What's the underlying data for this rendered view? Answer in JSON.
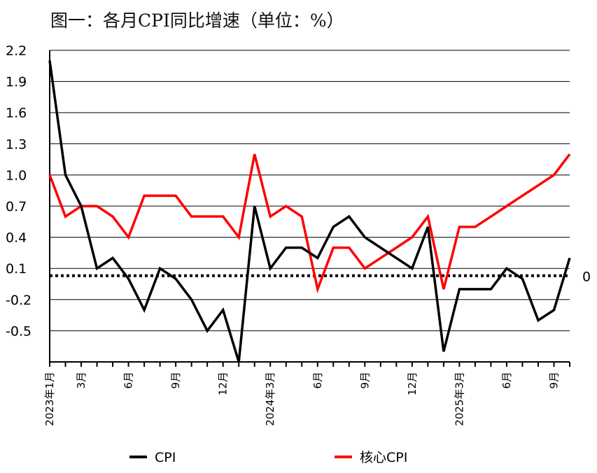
{
  "chart_data": {
    "type": "line",
    "title": "图一：各月CPI同比增速（单位：%）",
    "xlabel": "",
    "ylabel": "",
    "ylim": [
      -0.8,
      2.2
    ],
    "yticks": [
      "2.2",
      "1.9",
      "1.6",
      "1.3",
      "1.0",
      "0.7",
      "0.4",
      "0.1",
      "-0.2",
      "-0.5"
    ],
    "x": [
      "2023年1月",
      "2",
      "3月",
      "4",
      "5",
      "6月",
      "7",
      "8",
      "9月",
      "10",
      "11",
      "12月",
      "2024年1月",
      "2024年3月",
      "3",
      "4",
      "5",
      "6月",
      "7",
      "8",
      "9月",
      "10",
      "11",
      "12月",
      "2025年1月",
      "2",
      "2025年3月",
      "4",
      "5",
      "6月",
      "7",
      "8",
      "9月",
      "10"
    ],
    "x_labels": [
      {
        "index": 0,
        "text": "2023年1月"
      },
      {
        "index": 2,
        "text": "3月"
      },
      {
        "index": 5,
        "text": "6月"
      },
      {
        "index": 8,
        "text": "9月"
      },
      {
        "index": 11,
        "text": "12月"
      },
      {
        "index": 14,
        "text": "2024年3月"
      },
      {
        "index": 17,
        "text": "6月"
      },
      {
        "index": 20,
        "text": "9月"
      },
      {
        "index": 23,
        "text": "12月"
      },
      {
        "index": 26,
        "text": "2025年3月"
      },
      {
        "index": 29,
        "text": "6月"
      },
      {
        "index": 32,
        "text": "9月"
      }
    ],
    "series": [
      {
        "name": "CPI",
        "color": "#000000",
        "values": [
          2.1,
          1.0,
          0.7,
          0.1,
          0.2,
          0.0,
          -0.3,
          0.1,
          0.0,
          -0.2,
          -0.5,
          -0.3,
          -0.8,
          0.7,
          0.1,
          0.3,
          0.3,
          0.2,
          0.5,
          0.6,
          0.4,
          0.3,
          0.2,
          0.1,
          0.5,
          -0.7,
          -0.1,
          -0.1,
          -0.1,
          0.1,
          0.0,
          -0.4,
          -0.3,
          0.2
        ]
      },
      {
        "name": "核心CPI",
        "color": "#ff0000",
        "values": [
          1.0,
          0.6,
          0.7,
          0.7,
          0.6,
          0.4,
          0.8,
          0.8,
          0.8,
          0.6,
          0.6,
          0.6,
          0.4,
          1.2,
          0.6,
          0.7,
          0.6,
          -0.1,
          0.3,
          0.3,
          0.1,
          0.2,
          0.3,
          0.4,
          0.6,
          -0.1,
          0.5,
          0.5,
          0.6,
          0.7,
          0.8,
          0.9,
          1.0,
          1.2
        ]
      }
    ],
    "reference_line": {
      "value": 0.03,
      "label": "0",
      "style": "dotted"
    },
    "grid": true,
    "legend": "bottom"
  }
}
